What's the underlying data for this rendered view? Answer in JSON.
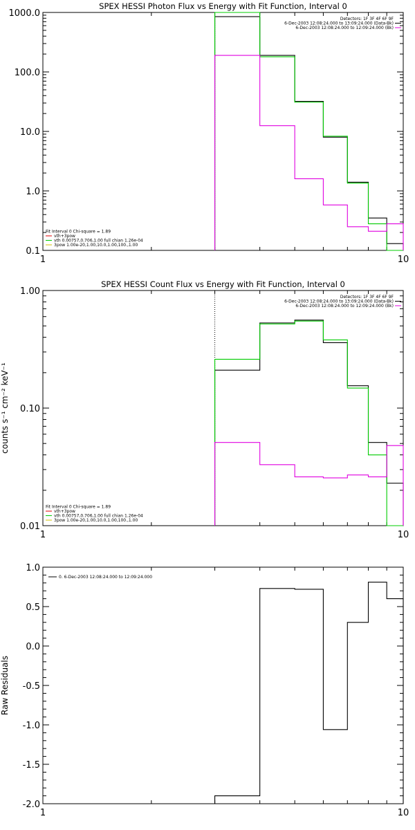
{
  "chart_data": [
    {
      "type": "line",
      "title": "SPEX HESSI Photon Flux vs Energy with Fit Function, Interval 0",
      "ylabel": "",
      "x_scale": "log",
      "y_scale": "log",
      "xlim": [
        1,
        10
      ],
      "ylim": [
        0.1,
        1000
      ],
      "x_ticks": [
        {
          "v": 1,
          "label": "1"
        },
        {
          "v": 10,
          "label": "10"
        }
      ],
      "y_ticks": [
        {
          "v": 1000,
          "label": "1000.0"
        },
        {
          "v": 100,
          "label": "100.0"
        },
        {
          "v": 10,
          "label": "10.0"
        },
        {
          "v": 1,
          "label": "1.0"
        },
        {
          "v": 0.1,
          "label": "0.1"
        }
      ],
      "vline": 3,
      "legend_top_right": [
        {
          "text": "Detectors: 1F 3F 4F 6F 9F",
          "color": ""
        },
        {
          "text": "6-Dec-2003 12:08:24.000 to 13:09:24.000 (Data-Bk)",
          "color": "#000000"
        },
        {
          "text": "6-Dec-2003 12:08:24.000 to 12:09:24.000 (Bk)",
          "color": "#e000e0"
        }
      ],
      "legend_bottom_left": [
        {
          "text": "Fit Interval 0   Chi-square = 1.89",
          "color": ""
        },
        {
          "text": "vth+3pow",
          "color": "#e00000"
        },
        {
          "text": "vth 0.00757,0.706,1.00  full chian 1.26e-04",
          "color": "#00cc00"
        },
        {
          "text": "3pow 1.00e-20,1.00,10.0,1.00,100.,1.00",
          "color": "#d0c000"
        }
      ],
      "series": [
        {
          "name": "Data-Bk",
          "color": "#000000",
          "edges": [
            3,
            4,
            5,
            6,
            7,
            8,
            9,
            10
          ],
          "values": [
            850,
            190,
            32,
            8,
            1.4,
            0.35,
            0.13
          ]
        },
        {
          "name": "vth",
          "color": "#00cc00",
          "edges": [
            3,
            4,
            5,
            6,
            7,
            8,
            9,
            10
          ],
          "values": [
            1000,
            180,
            31,
            8.3,
            1.35,
            0.28,
            0.09
          ]
        },
        {
          "name": "Bk",
          "color": "#e000e0",
          "edges": [
            3,
            4,
            5,
            6,
            7,
            8,
            9,
            10
          ],
          "values": [
            190,
            12.5,
            1.6,
            0.58,
            0.25,
            0.21,
            0.28
          ]
        }
      ]
    },
    {
      "type": "line",
      "title": "SPEX HESSI Count Flux vs Energy with Fit Function, Interval 0",
      "ylabel": "counts s⁻¹ cm⁻² keV⁻¹",
      "x_scale": "log",
      "y_scale": "log",
      "xlim": [
        1,
        10
      ],
      "ylim": [
        0.01,
        1
      ],
      "x_ticks": [
        {
          "v": 1,
          "label": "1"
        },
        {
          "v": 10,
          "label": "10"
        }
      ],
      "y_ticks": [
        {
          "v": 1,
          "label": "1.00"
        },
        {
          "v": 0.1,
          "label": "0.10"
        },
        {
          "v": 0.01,
          "label": "0.01"
        }
      ],
      "vline": 3,
      "legend_top_right": [
        {
          "text": "Detectors: 1F 3F 4F 6F 9F",
          "color": ""
        },
        {
          "text": "6-Dec-2003 12:08:24.000 to 13:09:24.000 (Data-Bk)",
          "color": "#000000"
        },
        {
          "text": "6-Dec-2003 12:08:24.000 to 12:09:24.000 (Bk)",
          "color": "#e000e0"
        }
      ],
      "legend_bottom_left": [
        {
          "text": "Fit Interval 0   Chi-square = 1.89",
          "color": ""
        },
        {
          "text": "vth+3pow",
          "color": "#e00000"
        },
        {
          "text": "vth 0.00757,0.706,1.00  full chian 1.26e-04",
          "color": "#00cc00"
        },
        {
          "text": "3pow 1.00e-20,1.00,10.0,1.00,100.,1.00",
          "color": "#d0c000"
        }
      ],
      "series": [
        {
          "name": "Data-Bk",
          "color": "#000000",
          "edges": [
            3,
            4,
            5,
            6,
            7,
            8,
            9,
            10
          ],
          "values": [
            0.21,
            0.53,
            0.56,
            0.36,
            0.155,
            0.051,
            0.023
          ]
        },
        {
          "name": "vth",
          "color": "#00cc00",
          "edges": [
            3,
            4,
            5,
            6,
            7,
            8,
            9,
            10
          ],
          "values": [
            0.26,
            0.52,
            0.55,
            0.38,
            0.148,
            0.04,
            0.01
          ]
        },
        {
          "name": "Bk",
          "color": "#e000e0",
          "edges": [
            3,
            4,
            5,
            6,
            7,
            8,
            9,
            10
          ],
          "values": [
            0.051,
            0.033,
            0.026,
            0.0255,
            0.027,
            0.026,
            0.048
          ]
        }
      ]
    },
    {
      "type": "line",
      "title": "",
      "ylabel": "Raw Residuals",
      "x_scale": "log",
      "y_scale": "linear",
      "xlim": [
        1,
        10
      ],
      "ylim": [
        -2.0,
        1.0
      ],
      "x_ticks": [
        {
          "v": 1,
          "label": "1"
        },
        {
          "v": 10,
          "label": "10"
        }
      ],
      "y_ticks": [
        {
          "v": 1,
          "label": "1.0"
        },
        {
          "v": 0.5,
          "label": "0.5"
        },
        {
          "v": 0,
          "label": "0.0"
        },
        {
          "v": -0.5,
          "label": "-0.5"
        },
        {
          "v": -1,
          "label": "-1.0"
        },
        {
          "v": -1.5,
          "label": "-1.5"
        },
        {
          "v": -2,
          "label": "-2.0"
        }
      ],
      "legend_top_left": [
        {
          "text": "0.  6-Dec-2003 12:08:24.000 to 12:09:24.000",
          "color": "#000000"
        }
      ],
      "series": [
        {
          "name": "0.",
          "color": "#000000",
          "edges": [
            3,
            4,
            5,
            6,
            7,
            8,
            9,
            10
          ],
          "values": [
            -1.9,
            0.73,
            0.72,
            -1.06,
            0.3,
            0.81,
            0.6
          ]
        }
      ]
    }
  ]
}
